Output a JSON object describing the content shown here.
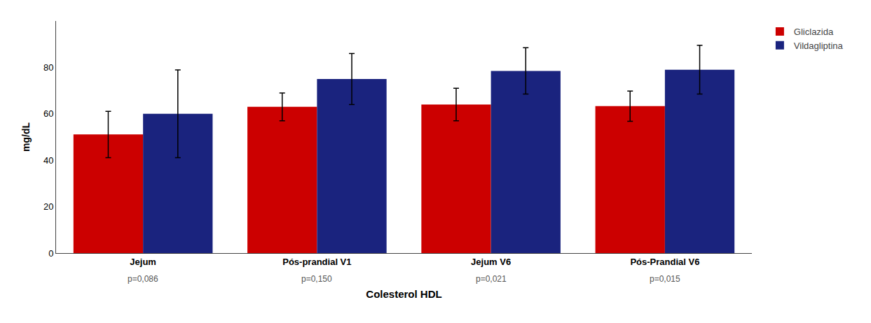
{
  "chart_data": {
    "type": "bar",
    "categories": [
      "Jejum",
      "Pós-prandial V1",
      "Jejum V6",
      "Pós-Prandial V6"
    ],
    "series": [
      {
        "name": "Gliclazida",
        "color": "#CC0000",
        "values": [
          51.1,
          63.0,
          64.0,
          63.3
        ],
        "errors": [
          10.0,
          6.0,
          7.0,
          6.5
        ]
      },
      {
        "name": "Vildagliptina",
        "color": "#1A237E",
        "values": [
          60.0,
          75.0,
          78.5,
          79.0
        ],
        "errors": [
          18.9,
          11.0,
          10.0,
          10.5
        ]
      }
    ],
    "xlabel": "Colesterol HDL",
    "ylabel": "mg/dL",
    "ylim": [
      0,
      100
    ],
    "yticks": [
      0,
      20,
      40,
      60,
      80
    ],
    "annotations": [
      {
        "x": "Jejum",
        "text": "p=0,086"
      },
      {
        "x": "Pós-prandial V1",
        "text": "p=0,150"
      },
      {
        "x": "Jejum V6",
        "text": "p=0,021"
      },
      {
        "x": "Pós-Prandial V6",
        "text": "p=0,015"
      }
    ],
    "grid": false,
    "legend": "upper right"
  }
}
